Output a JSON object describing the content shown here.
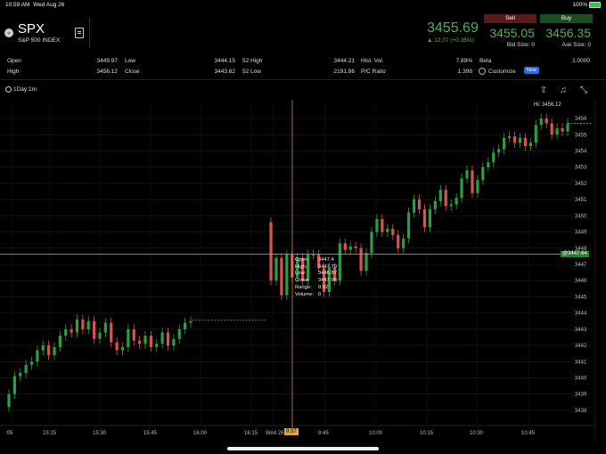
{
  "status_bar": {
    "time": "10:59 AM",
    "date": "Wed Aug 26",
    "battery": "100%"
  },
  "header": {
    "symbol": "SPX",
    "name": "S&P 500 INDEX",
    "last_price": "3455.69",
    "change": "▲ 12.07 (+0.35%)",
    "sell": {
      "label": "Sell",
      "price": "3455.05",
      "size": "Bid Size: 0"
    },
    "buy": {
      "label": "Buy",
      "price": "3456.35",
      "size": "Ask Size: 0"
    }
  },
  "stats": {
    "open_label": "Open",
    "open": "3449.97",
    "high_label": "High",
    "high": "3456.12",
    "low_label": "Low",
    "low": "3444.15",
    "close_label": "Close",
    "close": "3443.62",
    "wk52_high_label": "52 High",
    "wk52_high": "3444.21",
    "wk52_low_label": "52 Low",
    "wk52_low": "2191.86",
    "hist_vol_label": "Hist. Vol.",
    "hist_vol": "7.89%",
    "pc_ratio_label": "P/C Ratio",
    "pc_ratio": "1.398",
    "beta_label": "Beta",
    "beta": "1.0000",
    "customize_label": "Customize",
    "new_badge": "New"
  },
  "toolbar": {
    "timeframe": "1Day:1m"
  },
  "chart": {
    "hi_label": "Hi: 3456.12",
    "crosshair_price": "@3447.64",
    "crosshair_time": "9:37",
    "tooltip": {
      "open_label": "Open:",
      "open": "3447.4",
      "high_label": "High:",
      "high": "3447.79",
      "low_label": "Low:",
      "low": "3446.87",
      "close_label": "Close:",
      "close": "3447.58",
      "range_label": "Range:",
      "range": "0.92",
      "volume_label": "Volume:",
      "volume": "0"
    },
    "colors": {
      "up": "#2e9e44",
      "down": "#d9534f",
      "crosshair": "#e0a14b"
    }
  },
  "chart_data": {
    "type": "candlestick",
    "ylim": [
      3437.5,
      3456.5
    ],
    "y_ticks": [
      "3456",
      "3455",
      "3454",
      "3453",
      "3452",
      "3451",
      "3450",
      "3449",
      "3448",
      "3447",
      "3446",
      "3445",
      "3444",
      "3443",
      "3442",
      "3441",
      "3440",
      "3439",
      "3438"
    ],
    "x_ticks": [
      ":05",
      "15:15",
      "15:30",
      "15:45",
      "16:00",
      "16:15",
      "Wed 26",
      "9:45",
      "10:00",
      "10:15",
      "10:30",
      "10:45"
    ],
    "session1_close": [
      3439.0,
      3440.1,
      3440.3,
      3440.8,
      3441.0,
      3441.7,
      3442.0,
      3441.4,
      3441.9,
      3442.6,
      3443.0,
      3442.8,
      3443.6,
      3443.0,
      3443.5,
      3442.4,
      3442.8,
      3443.4,
      3442.2,
      3441.7,
      3441.9,
      3443.0,
      3442.3,
      3442.1,
      3442.6,
      3441.9,
      3442.1,
      3442.8,
      3442.0,
      3442.4,
      3443.0,
      3443.4,
      3443.5
    ],
    "prev_close": 3443.62,
    "session2_close": [
      3446.0,
      3447.4,
      3445.1,
      3447.6,
      3446.2,
      3447.4,
      3446.0,
      3447.6,
      3447.6,
      3446.8,
      3445.3,
      3446.8,
      3446.0,
      3448.3,
      3447.9,
      3448.1,
      3448.0,
      3446.6,
      3447.7,
      3449.0,
      3449.8,
      3449.0,
      3449.2,
      3448.8,
      3448.0,
      3448.6,
      3450.2,
      3451.0,
      3450.4,
      3449.3,
      3450.4,
      3450.9,
      3451.6,
      3450.6,
      3450.7,
      3451.1,
      3452.3,
      3452.8,
      3451.4,
      3452.2,
      3453.0,
      3453.3,
      3453.9,
      3454.1,
      3454.8,
      3454.9,
      3454.5,
      3454.8,
      3454.3,
      3454.5,
      3455.6,
      3456.0,
      3455.7,
      3455.0,
      3455.4,
      3455.2,
      3455.7
    ]
  }
}
